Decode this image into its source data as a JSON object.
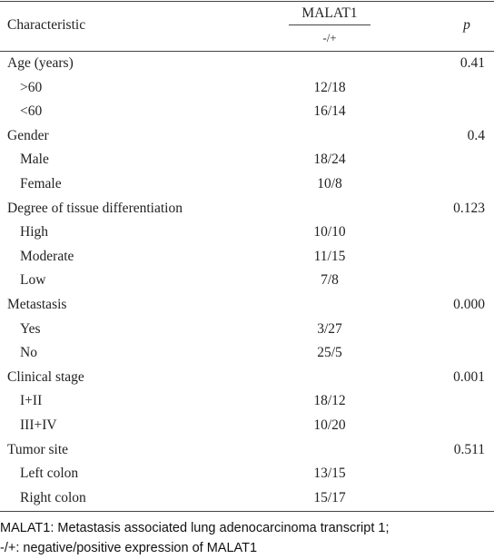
{
  "header": {
    "characteristic": "Characteristic",
    "group": "MALAT1",
    "subgroup": "-/+",
    "p": "p"
  },
  "groups": [
    {
      "label": "Age (years)",
      "p": "0.41",
      "items": [
        {
          "label": ">60",
          "value": "12/18"
        },
        {
          "label": "<60",
          "value": "16/14"
        }
      ]
    },
    {
      "label": "Gender",
      "p": "0.4",
      "items": [
        {
          "label": "Male",
          "value": "18/24"
        },
        {
          "label": "Female",
          "value": "10/8"
        }
      ]
    },
    {
      "label": "Degree of tissue differentiation",
      "p": "0.123",
      "items": [
        {
          "label": "High",
          "value": "10/10"
        },
        {
          "label": "Moderate",
          "value": "11/15"
        },
        {
          "label": "Low",
          "value": "7/8"
        }
      ]
    },
    {
      "label": "Metastasis",
      "p": "0.000",
      "items": [
        {
          "label": "Yes",
          "value": "3/27"
        },
        {
          "label": "No",
          "value": "25/5"
        }
      ]
    },
    {
      "label": "Clinical stage",
      "p": "0.001",
      "items": [
        {
          "label": "I+II",
          "value": "18/12"
        },
        {
          "label": "III+IV",
          "value": "10/20"
        }
      ]
    },
    {
      "label": "Tumor site",
      "p": "0.511",
      "items": [
        {
          "label": "Left colon",
          "value": "13/15"
        },
        {
          "label": "Right colon",
          "value": "15/17"
        }
      ]
    }
  ],
  "footnote": [
    "MALAT1: Metastasis associated lung adenocarcinoma transcript 1;",
    "-/+: negative/positive expression of MALAT1"
  ]
}
